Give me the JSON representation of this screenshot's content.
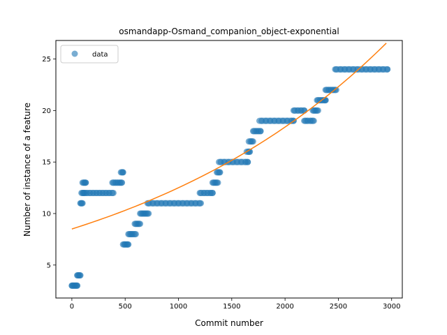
{
  "chart_data": {
    "type": "scatter",
    "title": "osmandapp-Osmand_companion_object-exponential",
    "xlabel": "Commit number",
    "ylabel": "Number of instance of a feature",
    "xlim": [
      -150,
      3100
    ],
    "ylim": [
      1.8,
      26.8
    ],
    "xticks": [
      0,
      500,
      1000,
      1500,
      2000,
      2500,
      3000
    ],
    "yticks": [
      5,
      10,
      15,
      20,
      25
    ],
    "legend": {
      "placement": "upper-left",
      "entries": [
        "data"
      ]
    },
    "colors": {
      "scatter": "#1f77b4",
      "fit": "#ff7f0e"
    },
    "segments": [
      {
        "x_start": 0,
        "x_end": 50,
        "y": 3
      },
      {
        "x_start": 50,
        "x_end": 80,
        "y": 4
      },
      {
        "x_start": 80,
        "x_end": 100,
        "y": 11
      },
      {
        "x_start": 90,
        "x_end": 120,
        "y": 12
      },
      {
        "x_start": 100,
        "x_end": 130,
        "y": 13
      },
      {
        "x_start": 120,
        "x_end": 390,
        "y": 12
      },
      {
        "x_start": 380,
        "x_end": 470,
        "y": 13
      },
      {
        "x_start": 460,
        "x_end": 480,
        "y": 14
      },
      {
        "x_start": 480,
        "x_end": 530,
        "y": 7
      },
      {
        "x_start": 530,
        "x_end": 600,
        "y": 8
      },
      {
        "x_start": 590,
        "x_end": 640,
        "y": 9
      },
      {
        "x_start": 640,
        "x_end": 720,
        "y": 10
      },
      {
        "x_start": 710,
        "x_end": 1210,
        "y": 11
      },
      {
        "x_start": 1200,
        "x_end": 1320,
        "y": 12
      },
      {
        "x_start": 1320,
        "x_end": 1370,
        "y": 13
      },
      {
        "x_start": 1360,
        "x_end": 1390,
        "y": 14
      },
      {
        "x_start": 1380,
        "x_end": 1650,
        "y": 15
      },
      {
        "x_start": 1640,
        "x_end": 1670,
        "y": 16
      },
      {
        "x_start": 1660,
        "x_end": 1700,
        "y": 17
      },
      {
        "x_start": 1700,
        "x_end": 1770,
        "y": 18
      },
      {
        "x_start": 1760,
        "x_end": 2080,
        "y": 19
      },
      {
        "x_start": 2080,
        "x_end": 2180,
        "y": 20
      },
      {
        "x_start": 2180,
        "x_end": 2270,
        "y": 19
      },
      {
        "x_start": 2260,
        "x_end": 2310,
        "y": 20
      },
      {
        "x_start": 2300,
        "x_end": 2380,
        "y": 21
      },
      {
        "x_start": 2380,
        "x_end": 2480,
        "y": 22
      },
      {
        "x_start": 2470,
        "x_end": 2960,
        "y": 24
      }
    ],
    "series": [
      {
        "name": "data",
        "kind": "scatter",
        "points": [
          [
            0,
            3
          ],
          [
            10,
            3
          ],
          [
            20,
            3
          ],
          [
            30,
            3
          ],
          [
            40,
            3
          ],
          [
            50,
            3
          ],
          [
            55,
            4
          ],
          [
            65,
            4
          ],
          [
            75,
            4
          ],
          [
            85,
            11
          ],
          [
            95,
            11
          ],
          [
            100,
            12
          ],
          [
            110,
            12
          ],
          [
            110,
            13
          ],
          [
            120,
            13
          ],
          [
            130,
            13
          ],
          [
            140,
            12
          ],
          [
            170,
            12
          ],
          [
            200,
            12
          ],
          [
            230,
            12
          ],
          [
            260,
            12
          ],
          [
            290,
            12
          ],
          [
            320,
            12
          ],
          [
            350,
            12
          ],
          [
            380,
            12
          ],
          [
            390,
            13
          ],
          [
            410,
            13
          ],
          [
            430,
            13
          ],
          [
            450,
            13
          ],
          [
            465,
            13
          ],
          [
            470,
            14
          ],
          [
            480,
            14
          ],
          [
            490,
            7
          ],
          [
            500,
            7
          ],
          [
            515,
            7
          ],
          [
            525,
            7
          ],
          [
            540,
            8
          ],
          [
            555,
            8
          ],
          [
            570,
            8
          ],
          [
            590,
            8
          ],
          [
            600,
            9
          ],
          [
            615,
            9
          ],
          [
            630,
            9
          ],
          [
            650,
            10
          ],
          [
            665,
            10
          ],
          [
            680,
            10
          ],
          [
            695,
            10
          ],
          [
            710,
            10
          ],
          [
            720,
            11
          ],
          [
            760,
            11
          ],
          [
            800,
            11
          ],
          [
            840,
            11
          ],
          [
            880,
            11
          ],
          [
            920,
            11
          ],
          [
            960,
            11
          ],
          [
            1000,
            11
          ],
          [
            1040,
            11
          ],
          [
            1080,
            11
          ],
          [
            1120,
            11
          ],
          [
            1160,
            11
          ],
          [
            1200,
            11
          ],
          [
            1210,
            12
          ],
          [
            1240,
            12
          ],
          [
            1270,
            12
          ],
          [
            1300,
            12
          ],
          [
            1320,
            12
          ],
          [
            1330,
            13
          ],
          [
            1345,
            13
          ],
          [
            1360,
            13
          ],
          [
            1370,
            14
          ],
          [
            1385,
            14
          ],
          [
            1395,
            15
          ],
          [
            1430,
            15
          ],
          [
            1470,
            15
          ],
          [
            1510,
            15
          ],
          [
            1550,
            15
          ],
          [
            1590,
            15
          ],
          [
            1630,
            15
          ],
          [
            1650,
            15
          ],
          [
            1655,
            16
          ],
          [
            1665,
            16
          ],
          [
            1675,
            17
          ],
          [
            1690,
            17
          ],
          [
            1710,
            18
          ],
          [
            1730,
            18
          ],
          [
            1750,
            18
          ],
          [
            1770,
            18
          ],
          [
            1780,
            19
          ],
          [
            1820,
            19
          ],
          [
            1860,
            19
          ],
          [
            1900,
            19
          ],
          [
            1940,
            19
          ],
          [
            1980,
            19
          ],
          [
            2020,
            19
          ],
          [
            2060,
            19
          ],
          [
            2080,
            19
          ],
          [
            2090,
            20
          ],
          [
            2120,
            20
          ],
          [
            2150,
            20
          ],
          [
            2180,
            20
          ],
          [
            2190,
            19
          ],
          [
            2210,
            19
          ],
          [
            2240,
            19
          ],
          [
            2260,
            19
          ],
          [
            2270,
            20
          ],
          [
            2285,
            20
          ],
          [
            2300,
            20
          ],
          [
            2310,
            21
          ],
          [
            2330,
            21
          ],
          [
            2350,
            21
          ],
          [
            2370,
            21
          ],
          [
            2380,
            21
          ],
          [
            2390,
            22
          ],
          [
            2410,
            22
          ],
          [
            2430,
            22
          ],
          [
            2450,
            22
          ],
          [
            2470,
            22
          ],
          [
            2480,
            24
          ],
          [
            2520,
            24
          ],
          [
            2560,
            24
          ],
          [
            2600,
            24
          ],
          [
            2640,
            24
          ],
          [
            2680,
            24
          ],
          [
            2720,
            24
          ],
          [
            2760,
            24
          ],
          [
            2800,
            24
          ],
          [
            2840,
            24
          ],
          [
            2880,
            24
          ],
          [
            2920,
            24
          ],
          [
            2960,
            24
          ]
        ]
      },
      {
        "kind": "line",
        "model": "exponential",
        "a": 8.5,
        "b": 0.000386,
        "x": [
          0,
          300,
          600,
          900,
          1200,
          1500,
          1800,
          2100,
          2400,
          2700,
          2950
        ],
        "y": [
          8.5,
          9.54,
          10.7,
          12.01,
          13.47,
          15.12,
          16.96,
          19.03,
          21.35,
          23.96,
          26.36
        ]
      }
    ]
  }
}
